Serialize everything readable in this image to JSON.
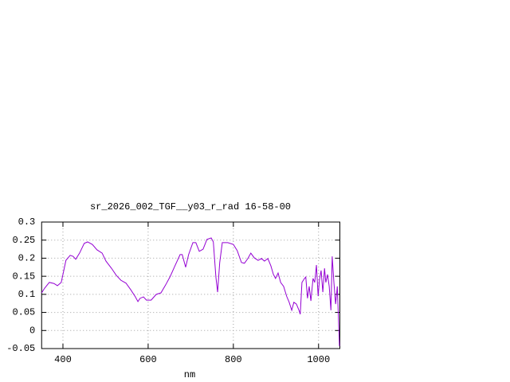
{
  "chart_data": {
    "type": "line",
    "title": "sr_2026_002_TGF__y03_r_rad 16-58-00",
    "xlabel": "nm",
    "color": "#9400d3",
    "grid": true,
    "xlim": [
      350,
      1050
    ],
    "xticks": [
      400,
      600,
      800,
      1000
    ],
    "ylim": [
      -0.05,
      0.3
    ],
    "yticks": [
      0.3,
      0.25,
      0.2,
      0.15,
      0.1,
      0.05,
      0,
      -0.05
    ],
    "x": [
      350,
      357,
      368,
      379,
      387,
      396,
      402,
      407,
      417,
      424,
      430,
      439,
      450,
      458,
      469,
      480,
      492,
      501,
      514,
      525,
      536,
      548,
      559,
      570,
      576,
      581,
      589,
      596,
      607,
      619,
      630,
      641,
      652,
      663,
      675,
      680,
      688,
      695,
      705,
      712,
      720,
      729,
      738,
      748,
      753,
      759,
      763,
      768,
      774,
      787,
      800,
      809,
      819,
      826,
      834,
      841,
      849,
      858,
      866,
      873,
      881,
      888,
      894,
      899,
      905,
      911,
      918,
      925,
      931,
      937,
      942,
      948,
      954,
      957,
      961,
      967,
      970,
      974,
      978,
      982,
      987,
      991,
      995,
      999,
      1002,
      1006,
      1010,
      1014,
      1017,
      1021,
      1025,
      1029,
      1032,
      1036,
      1040,
      1044,
      1049
    ],
    "values": [
      0.104,
      0.117,
      0.133,
      0.13,
      0.124,
      0.133,
      0.166,
      0.194,
      0.208,
      0.205,
      0.197,
      0.214,
      0.241,
      0.245,
      0.238,
      0.223,
      0.214,
      0.192,
      0.172,
      0.153,
      0.139,
      0.131,
      0.113,
      0.093,
      0.08,
      0.089,
      0.093,
      0.084,
      0.084,
      0.1,
      0.104,
      0.126,
      0.15,
      0.179,
      0.21,
      0.21,
      0.175,
      0.21,
      0.243,
      0.243,
      0.219,
      0.225,
      0.252,
      0.256,
      0.245,
      0.148,
      0.106,
      0.188,
      0.243,
      0.243,
      0.238,
      0.221,
      0.188,
      0.186,
      0.199,
      0.214,
      0.201,
      0.194,
      0.199,
      0.192,
      0.199,
      0.179,
      0.155,
      0.144,
      0.159,
      0.133,
      0.122,
      0.095,
      0.078,
      0.056,
      0.078,
      0.073,
      0.056,
      0.045,
      0.133,
      0.144,
      0.148,
      0.089,
      0.122,
      0.082,
      0.144,
      0.133,
      0.181,
      0.095,
      0.139,
      0.166,
      0.106,
      0.172,
      0.133,
      0.155,
      0.122,
      0.056,
      0.205,
      0.133,
      0.073,
      0.122,
      -0.043
    ]
  }
}
